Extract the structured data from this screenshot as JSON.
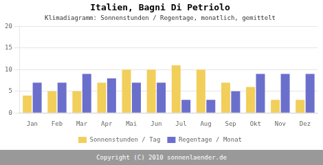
{
  "chart_data": {
    "type": "bar",
    "title": "Italien, Bagni Di Petriolo",
    "subtitle": "Klimadiagramm: Sonnenstunden / Regentage, monatlich, gemittelt",
    "footer": "Copyright (C) 2010 sonnenlaender.de",
    "categories": [
      "Jan",
      "Feb",
      "Mar",
      "Apr",
      "Mai",
      "Jun",
      "Jul",
      "Aug",
      "Sep",
      "Okt",
      "Nov",
      "Dez"
    ],
    "series": [
      {
        "name": "Sonnenstunden / Tag",
        "color": "#F2CF5B",
        "values": [
          4,
          5,
          5,
          7,
          10,
          10,
          11,
          10,
          7,
          6,
          3,
          3
        ]
      },
      {
        "name": "Regentage / Monat",
        "color": "#6B6FCC",
        "values": [
          7,
          7,
          9,
          8,
          7,
          7,
          3,
          3,
          5,
          9,
          9,
          9
        ]
      }
    ],
    "ylim": [
      0,
      20
    ],
    "yticks": [
      0,
      5,
      10,
      15,
      20
    ],
    "grid": true,
    "legend": "bottom"
  }
}
